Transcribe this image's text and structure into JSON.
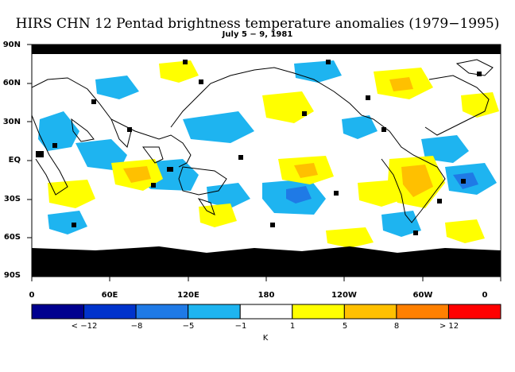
{
  "title": "HIRS CHN 12 Pentad brightness temperature anomalies (1979−1995)",
  "subtitle": "July 5 − 9, 1981",
  "lat_labels": [
    "90N",
    "60N",
    "30N",
    "EQ",
    "30S",
    "60S",
    "90S"
  ],
  "lon_labels": [
    "0",
    "60E",
    "120E",
    "180",
    "120W",
    "60W",
    "0"
  ],
  "colorbar": {
    "labels": [
      "< −12",
      "−8",
      "−5",
      "−1",
      "1",
      "5",
      "8",
      "> 12"
    ],
    "unit": "K",
    "colors": [
      "#00008f",
      "#0033cc",
      "#1f7ae6",
      "#1eb4f0",
      "#ffffff",
      "#ffff00",
      "#ffc000",
      "#ff8000",
      "#ff0000"
    ]
  },
  "colors": {
    "missing": "#000000",
    "neg_weak": "#1eb4f0",
    "neg_mid": "#1f7ae6",
    "pos_weak": "#ffff00",
    "pos_mid": "#ffc000",
    "coast": "#000000"
  }
}
